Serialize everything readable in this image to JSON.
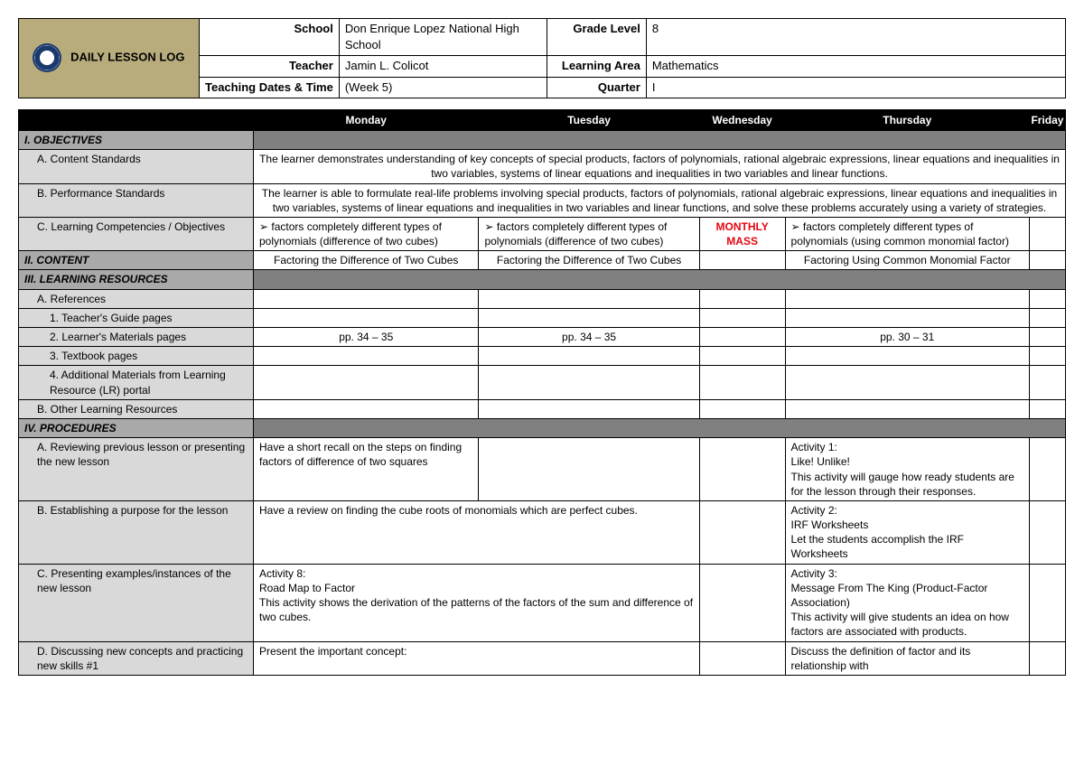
{
  "header": {
    "title": "DAILY LESSON LOG",
    "fields": {
      "school_label": "School",
      "school": "Don Enrique Lopez National High School",
      "teacher_label": "Teacher",
      "teacher": "Jamin L. Colicot",
      "dates_label": "Teaching Dates & Time",
      "dates": "(Week 5)",
      "grade_label": "Grade Level",
      "grade": "8",
      "area_label": "Learning Area",
      "area": "Mathematics",
      "quarter_label": "Quarter",
      "quarter": "I"
    }
  },
  "days": {
    "mon": "Monday",
    "tue": "Tuesday",
    "wed": "Wednesday",
    "thu": "Thursday",
    "fri": "Friday"
  },
  "sections": {
    "objectives": "I. OBJECTIVES",
    "content": "II. CONTENT",
    "resources": "III. LEARNING RESOURCES",
    "procedures": "IV. PROCEDURES"
  },
  "rows": {
    "a_content_std": "A. Content Standards",
    "a_content_std_text": "The learner demonstrates understanding of key concepts of special products, factors of polynomials, rational algebraic expressions, linear equations and inequalities in two variables, systems of linear equations and inequalities in two variables and linear functions.",
    "b_perf_std": "B. Performance Standards",
    "b_perf_std_text": "The learner is able to formulate real-life problems involving special products, factors of polynomials, rational algebraic expressions, linear equations and inequalities in two variables, systems of linear equations and inequalities in two variables and linear functions, and solve these problems accurately using a variety of strategies.",
    "c_learning": "C. Learning Competencies / Objectives",
    "c_mon": "factors completely different types of polynomials (difference of two cubes)",
    "c_tue": "factors completely different types of polynomials (difference of two cubes)",
    "c_wed": "MONTHLY MASS",
    "c_thu": "factors completely different types of polynomials (using common monomial factor)",
    "content_mon": "Factoring the Difference of Two Cubes",
    "content_tue": "Factoring the Difference of Two Cubes",
    "content_thu": "Factoring Using Common Monomial Factor",
    "a_ref": "A. References",
    "a1": "1. Teacher's Guide pages",
    "a2": "2. Learner's Materials pages",
    "a2_mon": "pp. 34 – 35",
    "a2_tue": "pp. 34 – 35",
    "a2_thu": "pp. 30 – 31",
    "a3": "3. Textbook pages",
    "a4": "4. Additional Materials from Learning Resource (LR) portal",
    "b_other": "B. Other Learning Resources",
    "pA": "A. Reviewing previous lesson or presenting the new lesson",
    "pA_mon": "Have a short recall on the steps on finding factors of difference of two squares",
    "pA_thu": "Activity 1:\n     Like! Unlike!\nThis activity will gauge how ready students are for the lesson through their responses.",
    "pB": "B. Establishing a purpose for the lesson",
    "pB_mon": "Have a review on finding the cube roots of monomials which are perfect cubes.",
    "pB_thu": "Activity 2:\n     IRF Worksheets\nLet the students accomplish the IRF Worksheets",
    "pC": "C. Presenting examples/instances of the new lesson",
    "pC_mon": "Activity 8:\n    Road Map to Factor\nThis activity shows the derivation of the patterns of the factors of the sum and difference of two cubes.",
    "pC_thu": "Activity 3:\n    Message From The King (Product-Factor Association)\n    This activity will give students an idea on how factors are associated with products.",
    "pD": "D. Discussing new concepts and practicing new skills #1",
    "pD_mon": "Present the important concept:",
    "pD_thu": "Discuss the definition of factor and its relationship with"
  }
}
